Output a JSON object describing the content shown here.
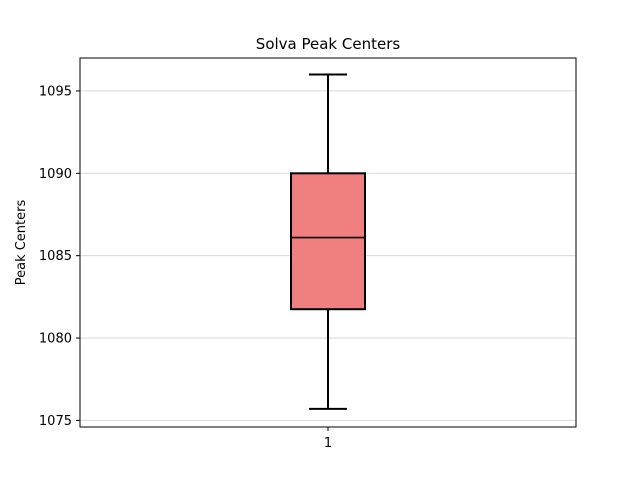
{
  "chart_data": {
    "type": "box",
    "title": "Solva Peak Centers",
    "xlabel": "",
    "ylabel": "Peak Centers",
    "ylim": [
      1074.6,
      1097.0
    ],
    "yticks": [
      1075,
      1080,
      1085,
      1090,
      1095
    ],
    "ytick_labels": [
      "1075",
      "1080",
      "1085",
      "1090",
      "1095"
    ],
    "categories": [
      "1"
    ],
    "grid": "horizontal",
    "boxes": [
      {
        "category": "1",
        "whisker_low": 1075.7,
        "q1": 1081.75,
        "median": 1086.1,
        "q3": 1090.0,
        "whisker_high": 1096.0
      }
    ],
    "colors": {
      "box_fill": "#f08080",
      "box_edge": "#000000",
      "grid": "#d3d3d3"
    }
  }
}
